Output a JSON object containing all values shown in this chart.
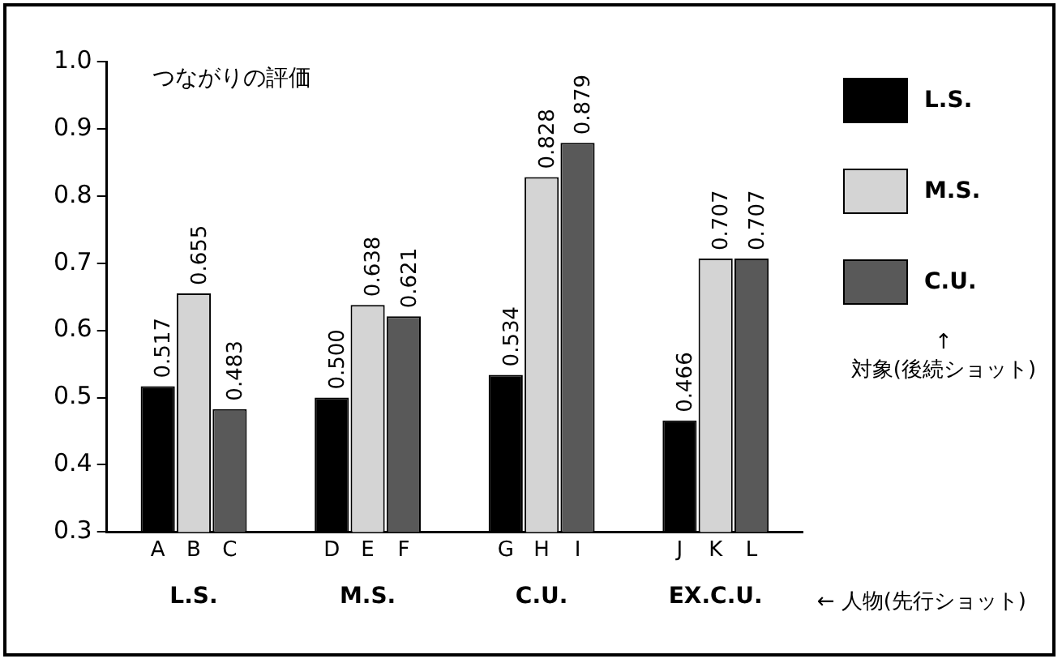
{
  "chart_data": {
    "type": "bar",
    "title": "つながりの評価",
    "xlabel": "← 人物(先行ショット)",
    "legend_title": "↑\n対象(後続ショット)",
    "categories": [
      "L.S.",
      "M.S.",
      "C.U.",
      "EX.C.U."
    ],
    "series": [
      {
        "name": "L.S.",
        "color": "#000000",
        "values": [
          0.517,
          0.5,
          0.534,
          0.466
        ],
        "value_labels": [
          "0.517",
          "0.500",
          "0.534",
          "0.466"
        ]
      },
      {
        "name": "M.S.",
        "color": "#d4d4d4",
        "values": [
          0.655,
          0.638,
          0.828,
          0.707
        ],
        "value_labels": [
          "0.655",
          "0.638",
          "0.828",
          "0.707"
        ]
      },
      {
        "name": "C.U.",
        "color": "#595959",
        "values": [
          0.483,
          0.621,
          0.879,
          0.707
        ],
        "value_labels": [
          "0.483",
          "0.621",
          "0.879",
          "0.707"
        ]
      }
    ],
    "annotations": [
      "A",
      "B",
      "C",
      "D",
      "E",
      "F",
      "G",
      "H",
      "I",
      "J",
      "K",
      "L"
    ],
    "ylim": [
      0.3,
      1.0
    ],
    "yticks": [
      0.3,
      0.4,
      0.5,
      0.6,
      0.7,
      0.8,
      0.9,
      {
        "value": 1,
        "label": "1.0"
      }
    ],
    "grid": false,
    "legend": "right"
  }
}
